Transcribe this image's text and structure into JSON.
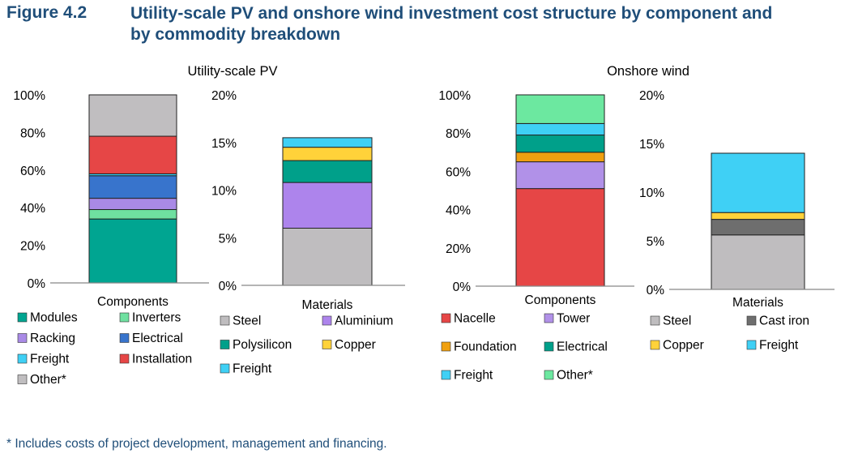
{
  "header": {
    "figure_number": "Figure 4.2",
    "title": "Utility-scale PV and onshore wind investment cost structure by component and by commodity breakdown"
  },
  "footnote": "* Includes costs of project development, management and financing.",
  "colors": {
    "modules": "#00a591",
    "inverters": "#6fe0a0",
    "racking": "#a98ae6",
    "electrical_pv": "#3874cc",
    "freight": "#3fd0f5",
    "installation": "#e64646",
    "other": "#c0bec0",
    "steel": "#bfbdbf",
    "aluminium": "#ad84ec",
    "polysilicon": "#00a08a",
    "copper": "#ffd23a",
    "nacelle": "#e64646",
    "tower": "#b191e8",
    "foundation": "#f0a010",
    "electrical_wind": "#00a08a",
    "other_wind": "#6ce8a0",
    "cast_iron": "#6e6e6e"
  },
  "chart_data": [
    {
      "id": "pv-components",
      "type": "bar",
      "stacked": true,
      "title": "Utility-scale PV",
      "categories": [
        "Components"
      ],
      "ylim": [
        0,
        100
      ],
      "yticks": [
        "0%",
        "20%",
        "40%",
        "60%",
        "80%",
        "100%"
      ],
      "series": [
        {
          "name": "Modules",
          "values": [
            34
          ],
          "color": "#00a591"
        },
        {
          "name": "Inverters",
          "values": [
            5
          ],
          "color": "#6fe0a0"
        },
        {
          "name": "Racking",
          "values": [
            6
          ],
          "color": "#a98ae6"
        },
        {
          "name": "Electrical",
          "values": [
            12
          ],
          "color": "#3874cc"
        },
        {
          "name": "Freight",
          "values": [
            1
          ],
          "color": "#3fd0f5"
        },
        {
          "name": "Installation",
          "values": [
            20
          ],
          "color": "#e64646"
        },
        {
          "name": "Other*",
          "values": [
            22
          ],
          "color": "#c0bec0"
        }
      ]
    },
    {
      "id": "pv-materials",
      "type": "bar",
      "stacked": true,
      "title": "",
      "categories": [
        "Materials"
      ],
      "ylim": [
        0,
        20
      ],
      "yticks": [
        "0%",
        "5%",
        "10%",
        "15%",
        "20%"
      ],
      "series": [
        {
          "name": "Steel",
          "values": [
            6.0
          ],
          "color": "#bfbdbf"
        },
        {
          "name": "Aluminium",
          "values": [
            4.8
          ],
          "color": "#ad84ec"
        },
        {
          "name": "Polysilicon",
          "values": [
            2.3
          ],
          "color": "#00a08a"
        },
        {
          "name": "Copper",
          "values": [
            1.4
          ],
          "color": "#ffd23a"
        },
        {
          "name": "Freight",
          "values": [
            1.0
          ],
          "color": "#3fd0f5"
        }
      ]
    },
    {
      "id": "wind-components",
      "type": "bar",
      "stacked": true,
      "title": "Onshore wind",
      "categories": [
        "Components"
      ],
      "ylim": [
        0,
        100
      ],
      "yticks": [
        "0%",
        "20%",
        "40%",
        "60%",
        "80%",
        "100%"
      ],
      "series": [
        {
          "name": "Nacelle",
          "values": [
            51
          ],
          "color": "#e64646"
        },
        {
          "name": "Tower",
          "values": [
            14
          ],
          "color": "#b191e8"
        },
        {
          "name": "Foundation",
          "values": [
            5
          ],
          "color": "#f0a010"
        },
        {
          "name": "Electrical",
          "values": [
            9
          ],
          "color": "#00a08a"
        },
        {
          "name": "Freight",
          "values": [
            6
          ],
          "color": "#3fd0f5"
        },
        {
          "name": "Other*",
          "values": [
            15
          ],
          "color": "#6ce8a0"
        }
      ]
    },
    {
      "id": "wind-materials",
      "type": "bar",
      "stacked": true,
      "title": "",
      "categories": [
        "Materials"
      ],
      "ylim": [
        0,
        20
      ],
      "yticks": [
        "0%",
        "5%",
        "10%",
        "15%",
        "20%"
      ],
      "series": [
        {
          "name": "Steel",
          "values": [
            5.6
          ],
          "color": "#bfbdbf"
        },
        {
          "name": "Cast iron",
          "values": [
            1.6
          ],
          "color": "#6e6e6e"
        },
        {
          "name": "Copper",
          "values": [
            0.7
          ],
          "color": "#ffd23a"
        },
        {
          "name": "Freight",
          "values": [
            6.1
          ],
          "color": "#3fd0f5"
        }
      ]
    }
  ]
}
